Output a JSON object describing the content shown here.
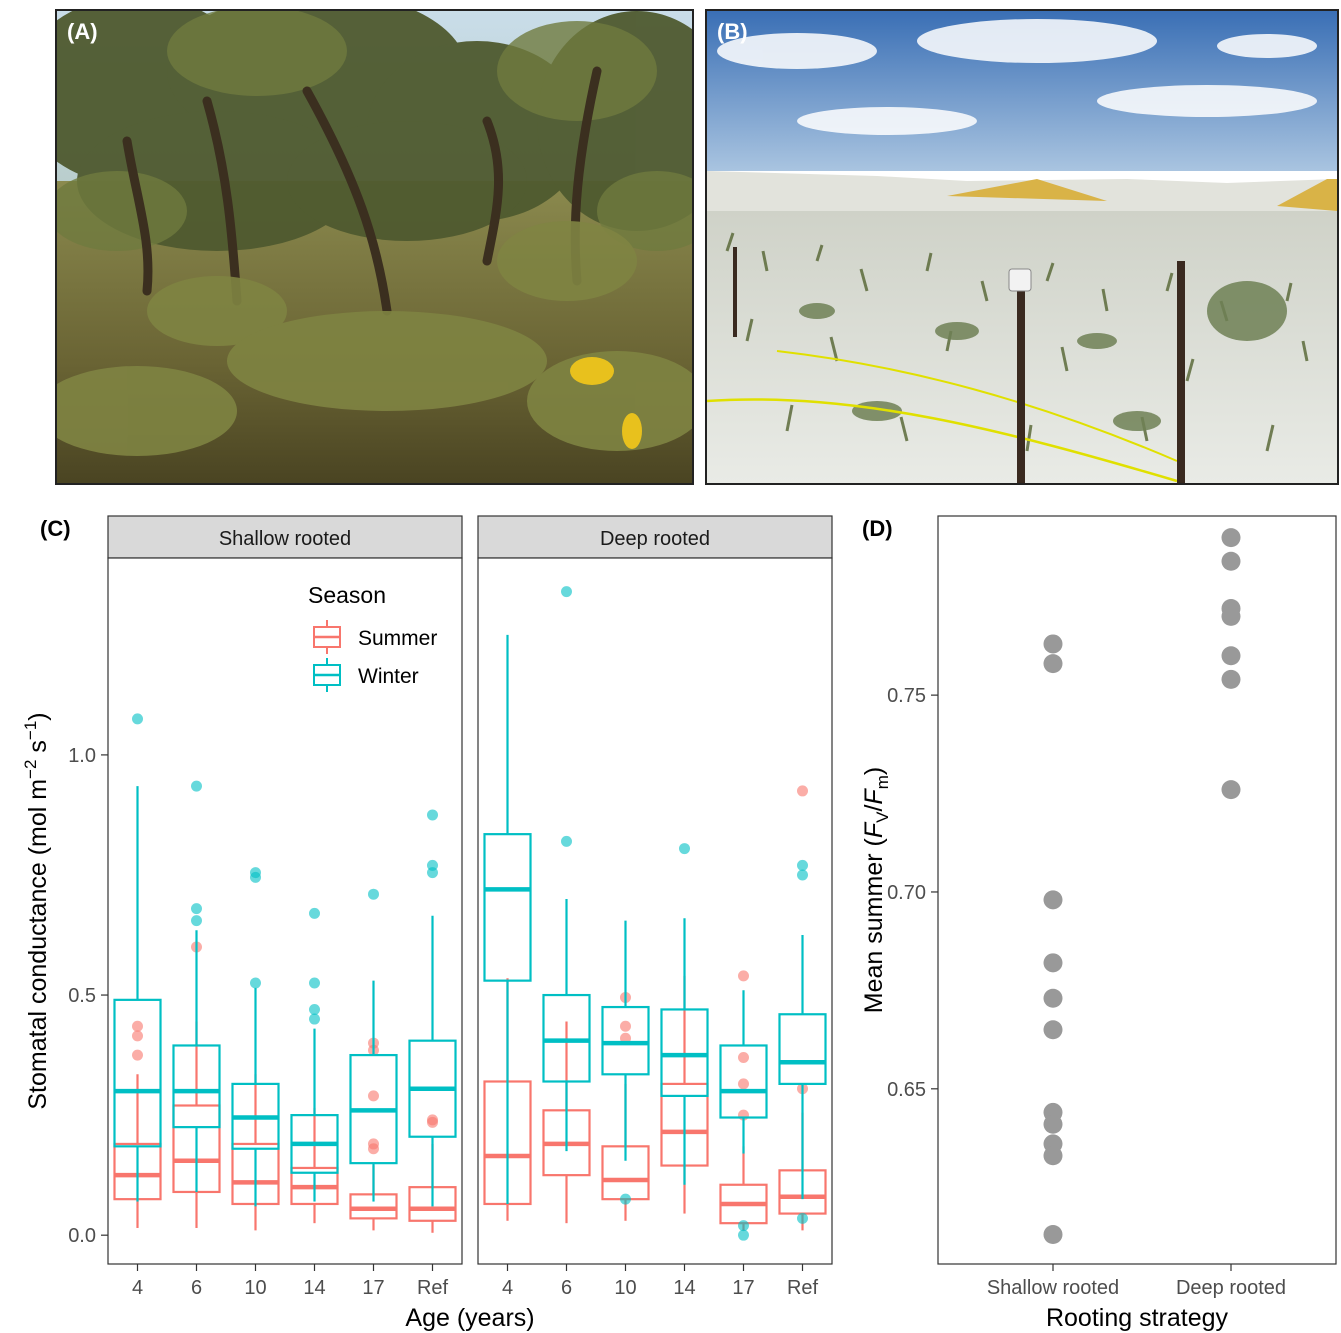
{
  "photos": [
    {
      "label": "(A)"
    },
    {
      "label": "(B)"
    }
  ],
  "colors": {
    "summer": "#f8766d",
    "winter": "#00bfc4",
    "point": "#999999",
    "strip": "#d9d9d9"
  },
  "chart_data": [
    {
      "type": "box",
      "panel_label": "(C)",
      "facets": [
        "Shallow rooted",
        "Deep rooted"
      ],
      "categories": [
        "4",
        "6",
        "10",
        "14",
        "17",
        "Ref"
      ],
      "xlabel": "Age (years)",
      "ylabel": "Stomatal conductance (mol m",
      "ylabel_sup1": "−2",
      "ylabel_mid": " s",
      "ylabel_sup2": "−1",
      "ylabel_end": ")",
      "yticks": [
        "0.0",
        "0.5",
        "1.0"
      ],
      "ytick_values": [
        0.0,
        0.5,
        1.0
      ],
      "ylim": [
        -0.06,
        1.41
      ],
      "legend": {
        "title": "Season",
        "entries": [
          "Summer",
          "Winter"
        ],
        "position": "inside-top-right"
      },
      "series": [
        {
          "name": "Summer",
          "facets": [
            [
              {
                "cat": "4",
                "lw": 0.015,
                "q1": 0.075,
                "med": 0.125,
                "q3": 0.19,
                "uw": 0.335,
                "out": [
                  0.375,
                  0.415,
                  0.435
                ]
              },
              {
                "cat": "6",
                "lw": 0.015,
                "q1": 0.09,
                "med": 0.155,
                "q3": 0.27,
                "uw": 0.445,
                "out": [
                  0.6
                ]
              },
              {
                "cat": "10",
                "lw": 0.01,
                "q1": 0.065,
                "med": 0.11,
                "q3": 0.19,
                "uw": 0.335,
                "out": []
              },
              {
                "cat": "14",
                "lw": 0.025,
                "q1": 0.065,
                "med": 0.1,
                "q3": 0.14,
                "uw": 0.265,
                "out": []
              },
              {
                "cat": "17",
                "lw": 0.01,
                "q1": 0.035,
                "med": 0.055,
                "q3": 0.085,
                "uw": 0.145,
                "out": [
                  0.18,
                  0.19,
                  0.29,
                  0.385,
                  0.4
                ]
              },
              {
                "cat": "Ref",
                "lw": 0.005,
                "q1": 0.03,
                "med": 0.055,
                "q3": 0.1,
                "uw": 0.19,
                "out": [
                  0.235,
                  0.24
                ]
              }
            ],
            [
              {
                "cat": "4",
                "lw": 0.03,
                "q1": 0.065,
                "med": 0.165,
                "q3": 0.32,
                "uw": 0.535,
                "out": []
              },
              {
                "cat": "6",
                "lw": 0.025,
                "q1": 0.125,
                "med": 0.19,
                "q3": 0.26,
                "uw": 0.445,
                "out": []
              },
              {
                "cat": "10",
                "lw": 0.03,
                "q1": 0.075,
                "med": 0.115,
                "q3": 0.185,
                "uw": 0.315,
                "out": [
                  0.41,
                  0.435,
                  0.495
                ]
              },
              {
                "cat": "14",
                "lw": 0.045,
                "q1": 0.145,
                "med": 0.215,
                "q3": 0.315,
                "uw": 0.54,
                "out": []
              },
              {
                "cat": "17",
                "lw": 0.01,
                "q1": 0.025,
                "med": 0.065,
                "q3": 0.105,
                "uw": 0.185,
                "out": [
                  0.25,
                  0.315,
                  0.37,
                  0.54
                ]
              },
              {
                "cat": "Ref",
                "lw": 0.01,
                "q1": 0.045,
                "med": 0.08,
                "q3": 0.135,
                "uw": 0.255,
                "out": [
                  0.305,
                  0.925
                ]
              }
            ]
          ]
        },
        {
          "name": "Winter",
          "facets": [
            [
              {
                "cat": "4",
                "lw": 0.07,
                "q1": 0.185,
                "med": 0.3,
                "q3": 0.49,
                "uw": 0.935,
                "out": [
                  1.075
                ]
              },
              {
                "cat": "6",
                "lw": 0.09,
                "q1": 0.225,
                "med": 0.3,
                "q3": 0.395,
                "uw": 0.635,
                "out": [
                  0.655,
                  0.68,
                  0.935
                ]
              },
              {
                "cat": "10",
                "lw": 0.06,
                "q1": 0.18,
                "med": 0.245,
                "q3": 0.315,
                "uw": 0.515,
                "out": [
                  0.525,
                  0.745,
                  0.755
                ]
              },
              {
                "cat": "14",
                "lw": 0.07,
                "q1": 0.13,
                "med": 0.19,
                "q3": 0.25,
                "uw": 0.43,
                "out": [
                  0.45,
                  0.47,
                  0.525,
                  0.67
                ]
              },
              {
                "cat": "17",
                "lw": 0.07,
                "q1": 0.15,
                "med": 0.26,
                "q3": 0.375,
                "uw": 0.53,
                "out": [
                  0.71
                ]
              },
              {
                "cat": "Ref",
                "lw": 0.06,
                "q1": 0.205,
                "med": 0.305,
                "q3": 0.405,
                "uw": 0.665,
                "out": [
                  0.755,
                  0.77,
                  0.875
                ]
              }
            ],
            [
              {
                "cat": "4",
                "lw": 0.065,
                "q1": 0.53,
                "med": 0.72,
                "q3": 0.835,
                "uw": 1.25,
                "out": []
              },
              {
                "cat": "6",
                "lw": 0.175,
                "q1": 0.32,
                "med": 0.405,
                "q3": 0.5,
                "uw": 0.7,
                "out": [
                  0.82,
                  1.34
                ]
              },
              {
                "cat": "10",
                "lw": 0.155,
                "q1": 0.335,
                "med": 0.4,
                "q3": 0.475,
                "uw": 0.655,
                "out": [
                  0.075
                ]
              },
              {
                "cat": "14",
                "lw": 0.105,
                "q1": 0.29,
                "med": 0.375,
                "q3": 0.47,
                "uw": 0.66,
                "out": [
                  0.805
                ]
              },
              {
                "cat": "17",
                "lw": 0.17,
                "q1": 0.245,
                "med": 0.3,
                "q3": 0.395,
                "uw": 0.51,
                "out": [
                  0.0,
                  0.02
                ]
              },
              {
                "cat": "Ref",
                "lw": 0.075,
                "q1": 0.315,
                "med": 0.36,
                "q3": 0.46,
                "uw": 0.625,
                "out": [
                  0.035,
                  0.75,
                  0.77
                ]
              }
            ]
          ]
        }
      ]
    },
    {
      "type": "scatter",
      "panel_label": "(D)",
      "categories": [
        "Shallow rooted",
        "Deep rooted"
      ],
      "xlabel": "Rooting strategy",
      "ylabel": "Mean summer (",
      "ylabel_f1": "F",
      "ylabel_s1": "V",
      "ylabel_slash": "/",
      "ylabel_f2": "F",
      "ylabel_s2": "m",
      "ylabel_end": ")",
      "yticks": [
        "0.65",
        "0.70",
        "0.75"
      ],
      "ytick_values": [
        0.65,
        0.7,
        0.75
      ],
      "ylim": [
        0.6055,
        0.7955
      ],
      "series": [
        {
          "name": "Shallow rooted",
          "values": [
            0.763,
            0.758,
            0.698,
            0.682,
            0.673,
            0.665,
            0.644,
            0.641,
            0.636,
            0.633,
            0.613
          ]
        },
        {
          "name": "Deep rooted",
          "values": [
            0.79,
            0.784,
            0.772,
            0.77,
            0.76,
            0.754,
            0.726
          ]
        }
      ]
    }
  ]
}
